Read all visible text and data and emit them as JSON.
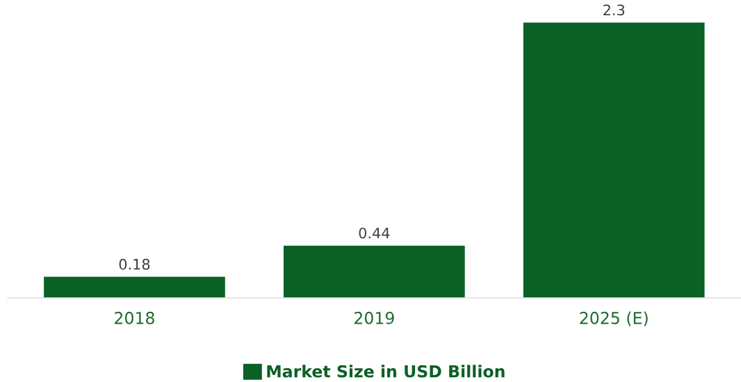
{
  "chart_data": {
    "type": "bar",
    "categories": [
      "2018",
      "2019",
      "2025 (E)"
    ],
    "series": [
      {
        "name": "Market Size in USD Billion",
        "color": "#0b6125",
        "values": [
          0.18,
          0.44,
          2.3
        ]
      }
    ],
    "data_labels": true,
    "legend": "bottom",
    "grid": false
  }
}
